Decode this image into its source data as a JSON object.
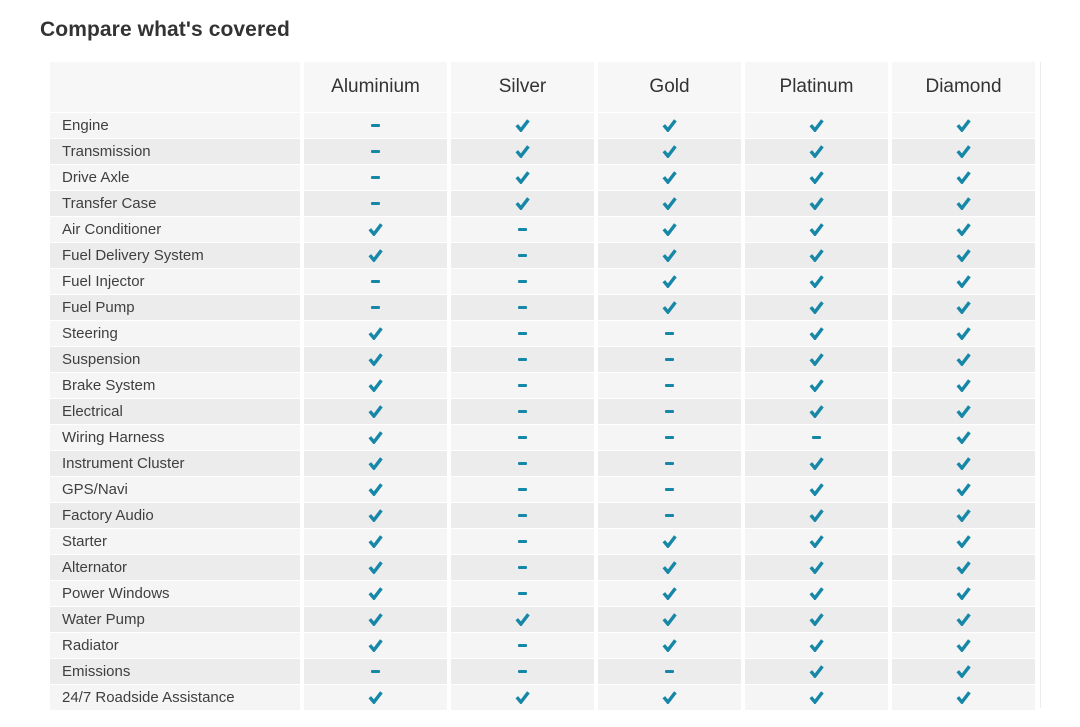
{
  "title": "Compare what's covered",
  "colors": {
    "check": "#1787a8",
    "header_bg": "#f7f7f7",
    "row_light": "#f5f5f5",
    "row_dark": "#ececec"
  },
  "icons": {
    "covered": "check-icon",
    "not_covered": "dash-icon"
  },
  "table": {
    "plans": [
      "Aluminium",
      "Silver",
      "Gold",
      "Platinum",
      "Diamond"
    ],
    "rows": [
      {
        "label": "Engine",
        "covered": [
          false,
          true,
          true,
          true,
          true
        ]
      },
      {
        "label": "Transmission",
        "covered": [
          false,
          true,
          true,
          true,
          true
        ]
      },
      {
        "label": "Drive Axle",
        "covered": [
          false,
          true,
          true,
          true,
          true
        ]
      },
      {
        "label": "Transfer Case",
        "covered": [
          false,
          true,
          true,
          true,
          true
        ]
      },
      {
        "label": "Air Conditioner",
        "covered": [
          true,
          false,
          true,
          true,
          true
        ]
      },
      {
        "label": "Fuel Delivery System",
        "covered": [
          true,
          false,
          true,
          true,
          true
        ]
      },
      {
        "label": "Fuel Injector",
        "covered": [
          false,
          false,
          true,
          true,
          true
        ]
      },
      {
        "label": "Fuel Pump",
        "covered": [
          false,
          false,
          true,
          true,
          true
        ]
      },
      {
        "label": "Steering",
        "covered": [
          true,
          false,
          false,
          true,
          true
        ]
      },
      {
        "label": "Suspension",
        "covered": [
          true,
          false,
          false,
          true,
          true
        ]
      },
      {
        "label": "Brake System",
        "covered": [
          true,
          false,
          false,
          true,
          true
        ]
      },
      {
        "label": "Electrical",
        "covered": [
          true,
          false,
          false,
          true,
          true
        ]
      },
      {
        "label": "Wiring Harness",
        "covered": [
          true,
          false,
          false,
          false,
          true
        ]
      },
      {
        "label": "Instrument Cluster",
        "covered": [
          true,
          false,
          false,
          true,
          true
        ]
      },
      {
        "label": "GPS/Navi",
        "covered": [
          true,
          false,
          false,
          true,
          true
        ]
      },
      {
        "label": "Factory Audio",
        "covered": [
          true,
          false,
          false,
          true,
          true
        ]
      },
      {
        "label": "Starter",
        "covered": [
          true,
          false,
          true,
          true,
          true
        ]
      },
      {
        "label": "Alternator",
        "covered": [
          true,
          false,
          true,
          true,
          true
        ]
      },
      {
        "label": "Power Windows",
        "covered": [
          true,
          false,
          true,
          true,
          true
        ]
      },
      {
        "label": "Water Pump",
        "covered": [
          true,
          true,
          true,
          true,
          true
        ]
      },
      {
        "label": "Radiator",
        "covered": [
          true,
          false,
          true,
          true,
          true
        ]
      },
      {
        "label": "Emissions",
        "covered": [
          false,
          false,
          false,
          true,
          true
        ]
      },
      {
        "label": "24/7 Roadside Assistance",
        "covered": [
          true,
          true,
          true,
          true,
          true
        ]
      }
    ]
  }
}
